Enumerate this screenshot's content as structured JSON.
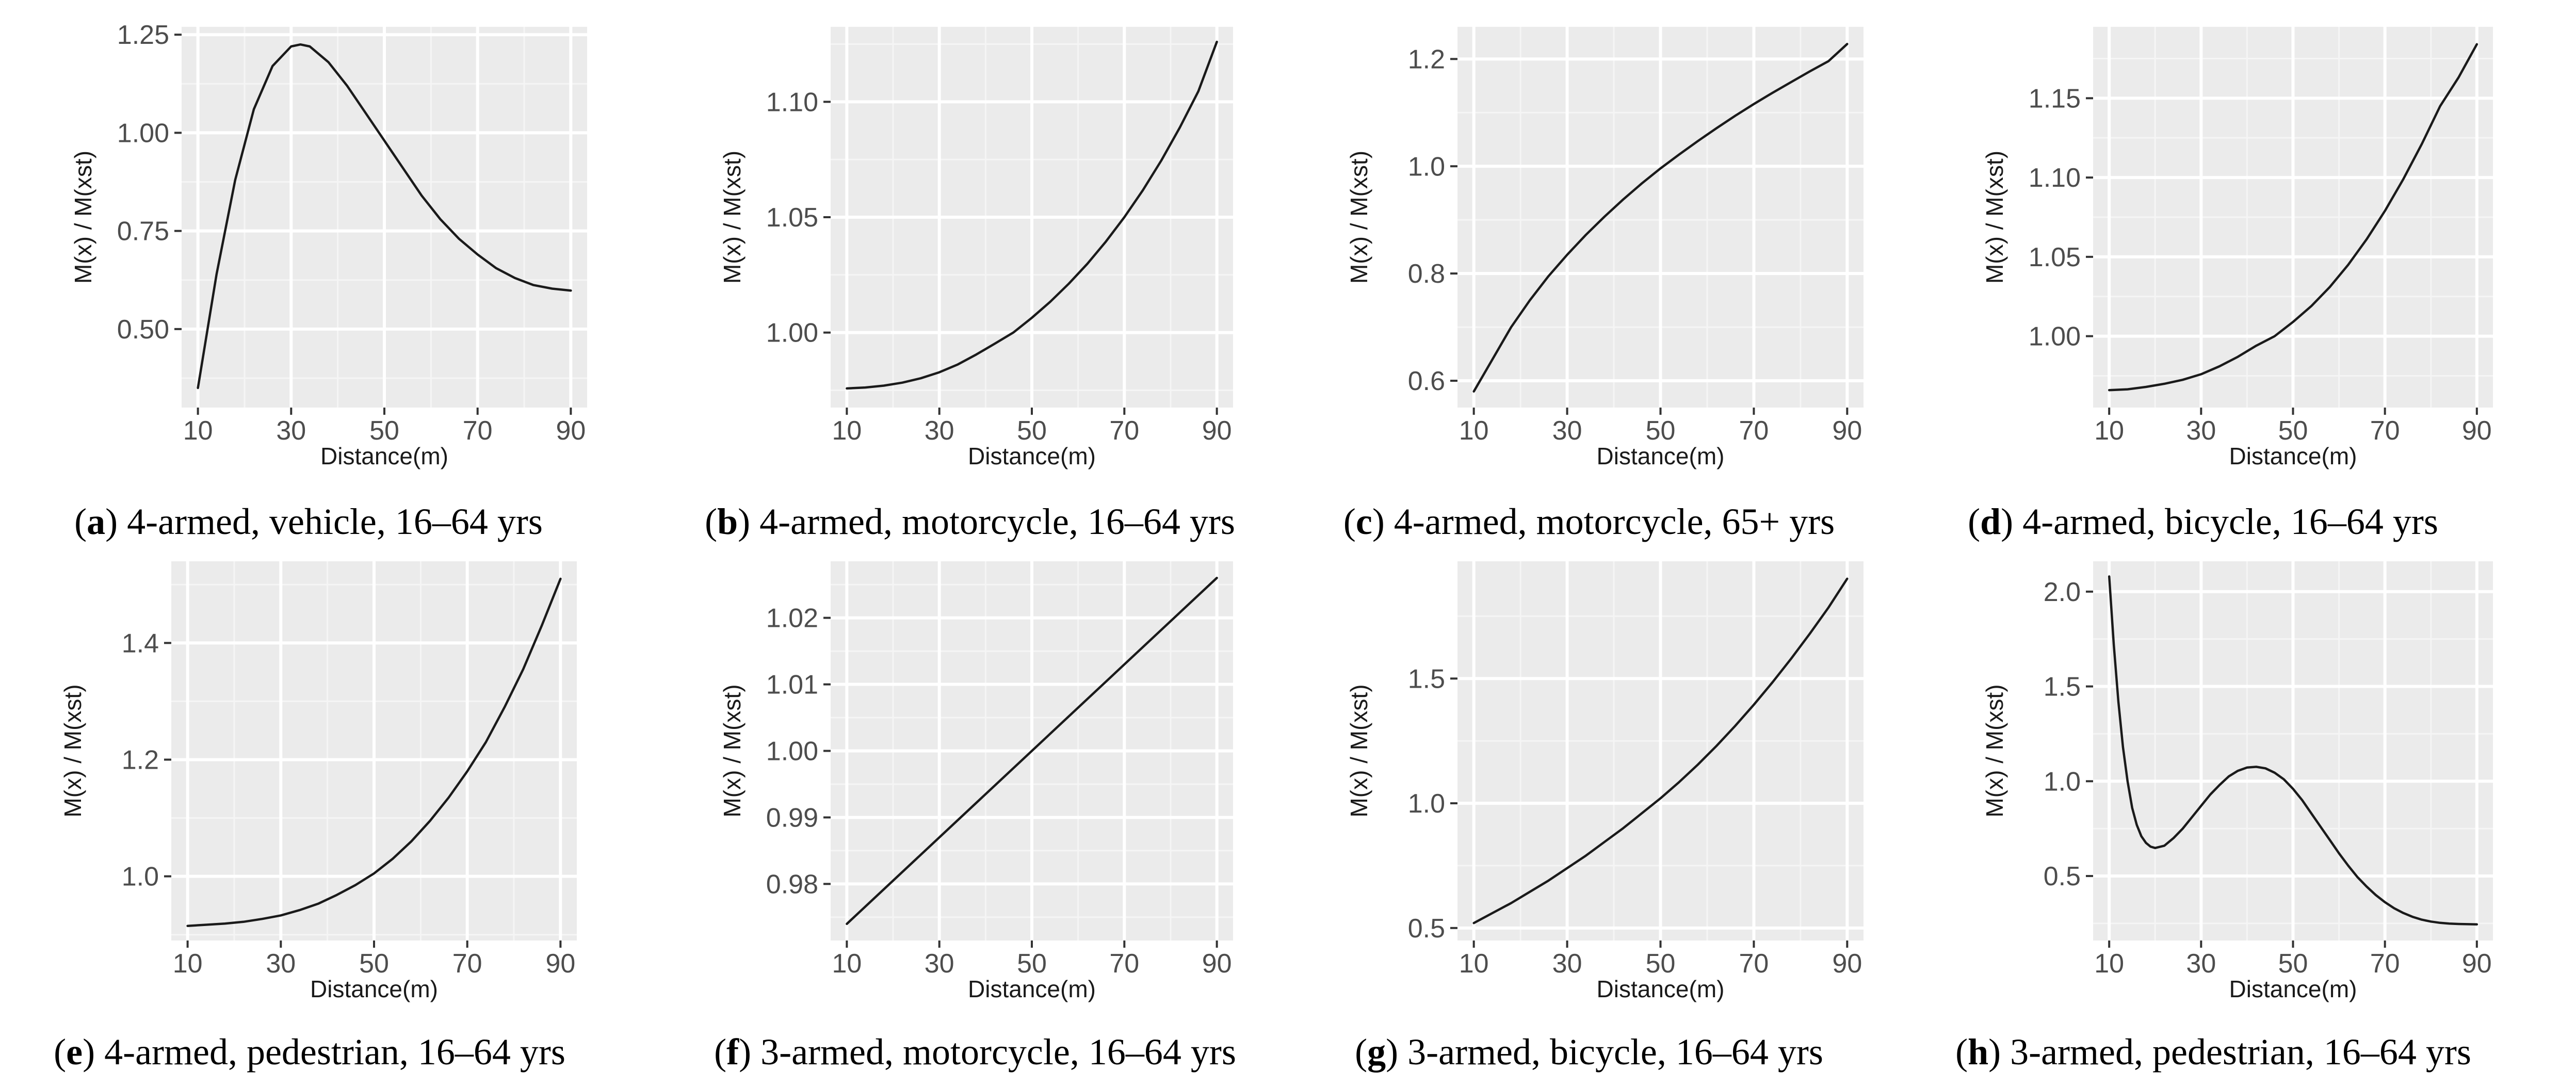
{
  "figure": {
    "panel_order": [
      "a",
      "b",
      "c",
      "d",
      "e",
      "f",
      "g",
      "h"
    ]
  },
  "chart_data": [
    {
      "id": "a",
      "type": "line",
      "caption_letter": "a",
      "caption_text": "4-armed, vehicle, 16–64 yrs",
      "xlabel": "Distance(m)",
      "ylabel": "M(x) / M(xst)",
      "xlim": [
        6.5,
        93.5
      ],
      "ylim": [
        0.3,
        1.27
      ],
      "xticks": [
        10,
        30,
        50,
        70,
        90
      ],
      "xtick_labels": [
        "10",
        "30",
        "50",
        "70",
        "90"
      ],
      "yticks": [
        0.5,
        0.75,
        1.0,
        1.25
      ],
      "ytick_labels": [
        "0.50",
        "0.75",
        "1.00",
        "1.25"
      ],
      "x": [
        10,
        14,
        18,
        22,
        26,
        30,
        32,
        34,
        38,
        42,
        46,
        50,
        54,
        58,
        62,
        66,
        70,
        74,
        78,
        82,
        86,
        90
      ],
      "y": [
        0.35,
        0.64,
        0.88,
        1.06,
        1.17,
        1.22,
        1.225,
        1.22,
        1.18,
        1.12,
        1.05,
        0.98,
        0.91,
        0.84,
        0.78,
        0.73,
        0.69,
        0.655,
        0.63,
        0.612,
        0.603,
        0.598
      ]
    },
    {
      "id": "b",
      "type": "line",
      "caption_letter": "b",
      "caption_text": "4-armed, motorcycle, 16–64 yrs",
      "xlabel": "Distance(m)",
      "ylabel": "M(x) / M(xst)",
      "xlim": [
        6.5,
        93.5
      ],
      "ylim": [
        0.9675,
        1.1325
      ],
      "xticks": [
        10,
        30,
        50,
        70,
        90
      ],
      "xtick_labels": [
        "10",
        "30",
        "50",
        "70",
        "90"
      ],
      "yticks": [
        1.0,
        1.05,
        1.1
      ],
      "ytick_labels": [
        "1.00",
        "1.05",
        "1.10"
      ],
      "x": [
        10,
        14,
        18,
        22,
        26,
        30,
        34,
        38,
        42,
        46,
        50,
        54,
        58,
        62,
        66,
        70,
        74,
        78,
        82,
        86,
        90
      ],
      "y": [
        0.9758,
        0.9762,
        0.977,
        0.9783,
        0.9802,
        0.9828,
        0.9862,
        0.9905,
        0.9952,
        1.0,
        1.0064,
        1.0134,
        1.0212,
        1.0298,
        1.0394,
        1.05,
        1.0617,
        1.0746,
        1.0889,
        1.1046,
        1.126
      ]
    },
    {
      "id": "c",
      "type": "line",
      "caption_letter": "c",
      "caption_text": "4-armed, motorcycle, 65+ yrs",
      "xlabel": "Distance(m)",
      "ylabel": "M(x) / M(xst)",
      "xlim": [
        6.5,
        93.5
      ],
      "ylim": [
        0.55,
        1.26
      ],
      "xticks": [
        10,
        30,
        50,
        70,
        90
      ],
      "xtick_labels": [
        "10",
        "30",
        "50",
        "70",
        "90"
      ],
      "yticks": [
        0.6,
        0.8,
        1.0,
        1.2
      ],
      "ytick_labels": [
        "0.6",
        "0.8",
        "1.0",
        "1.2"
      ],
      "x": [
        10,
        14,
        18,
        22,
        26,
        30,
        34,
        38,
        42,
        46,
        50,
        54,
        58,
        62,
        66,
        70,
        74,
        78,
        82,
        86,
        90
      ],
      "y": [
        0.58,
        0.64,
        0.7,
        0.75,
        0.795,
        0.835,
        0.872,
        0.906,
        0.938,
        0.968,
        0.996,
        1.022,
        1.047,
        1.071,
        1.094,
        1.116,
        1.137,
        1.157,
        1.177,
        1.196,
        1.228
      ]
    },
    {
      "id": "d",
      "type": "line",
      "caption_letter": "d",
      "caption_text": "4-armed, bicycle, 16–64 yrs",
      "xlabel": "Distance(m)",
      "ylabel": "M(x) / M(xst)",
      "xlim": [
        6.5,
        93.5
      ],
      "ylim": [
        0.955,
        1.195
      ],
      "xticks": [
        10,
        30,
        50,
        70,
        90
      ],
      "xtick_labels": [
        "10",
        "30",
        "50",
        "70",
        "90"
      ],
      "yticks": [
        1.0,
        1.05,
        1.1,
        1.15
      ],
      "ytick_labels": [
        "1.00",
        "1.05",
        "1.10",
        "1.15"
      ],
      "x": [
        10,
        14,
        18,
        22,
        26,
        30,
        34,
        38,
        42,
        46,
        50,
        54,
        58,
        62,
        66,
        70,
        74,
        78,
        82,
        86,
        90
      ],
      "y": [
        0.966,
        0.9665,
        0.968,
        0.97,
        0.9725,
        0.976,
        0.981,
        0.987,
        0.994,
        1.0,
        1.009,
        1.019,
        1.031,
        1.045,
        1.061,
        1.079,
        1.099,
        1.121,
        1.145,
        1.163,
        1.184
      ]
    },
    {
      "id": "e",
      "type": "line",
      "caption_letter": "e",
      "caption_text": "4-armed, pedestrian, 16–64 yrs",
      "xlabel": "Distance(m)",
      "ylabel": "M(x) / M(xst)",
      "xlim": [
        6.5,
        93.5
      ],
      "ylim": [
        0.89,
        1.54
      ],
      "xticks": [
        10,
        30,
        50,
        70,
        90
      ],
      "xtick_labels": [
        "10",
        "30",
        "50",
        "70",
        "90"
      ],
      "yticks": [
        1.0,
        1.2,
        1.4
      ],
      "ytick_labels": [
        "1.0",
        "1.2",
        "1.4"
      ],
      "x": [
        10,
        14,
        18,
        22,
        26,
        30,
        34,
        38,
        42,
        46,
        50,
        54,
        58,
        62,
        66,
        70,
        74,
        78,
        82,
        86,
        90
      ],
      "y": [
        0.915,
        0.917,
        0.919,
        0.922,
        0.927,
        0.933,
        0.942,
        0.953,
        0.968,
        0.985,
        1.005,
        1.03,
        1.06,
        1.095,
        1.135,
        1.18,
        1.23,
        1.29,
        1.355,
        1.43,
        1.51
      ]
    },
    {
      "id": "f",
      "type": "line",
      "caption_letter": "f",
      "caption_text": "3-armed, motorcycle, 16–64 yrs",
      "xlabel": "Distance(m)",
      "ylabel": "M(x) / M(xst)",
      "xlim": [
        6.5,
        93.5
      ],
      "ylim": [
        0.9715,
        1.0285
      ],
      "xticks": [
        10,
        30,
        50,
        70,
        90
      ],
      "xtick_labels": [
        "10",
        "30",
        "50",
        "70",
        "90"
      ],
      "yticks": [
        0.98,
        0.99,
        1.0,
        1.01,
        1.02
      ],
      "ytick_labels": [
        "0.98",
        "0.99",
        "1.00",
        "1.01",
        "1.02"
      ],
      "x": [
        10,
        90
      ],
      "y": [
        0.974,
        1.026
      ]
    },
    {
      "id": "g",
      "type": "line",
      "caption_letter": "g",
      "caption_text": "3-armed, bicycle, 16–64 yrs",
      "xlabel": "Distance(m)",
      "ylabel": "M(x) / M(xst)",
      "xlim": [
        6.5,
        93.5
      ],
      "ylim": [
        0.45,
        1.97
      ],
      "xticks": [
        10,
        30,
        50,
        70,
        90
      ],
      "xtick_labels": [
        "10",
        "30",
        "50",
        "70",
        "90"
      ],
      "yticks": [
        0.5,
        1.0,
        1.5
      ],
      "ytick_labels": [
        "0.5",
        "1.0",
        "1.5"
      ],
      "x": [
        10,
        14,
        18,
        22,
        26,
        30,
        34,
        38,
        42,
        46,
        50,
        54,
        58,
        62,
        66,
        70,
        74,
        78,
        82,
        86,
        90
      ],
      "y": [
        0.52,
        0.56,
        0.6,
        0.645,
        0.69,
        0.74,
        0.79,
        0.845,
        0.9,
        0.96,
        1.02,
        1.085,
        1.155,
        1.23,
        1.31,
        1.395,
        1.485,
        1.58,
        1.68,
        1.785,
        1.9
      ]
    },
    {
      "id": "h",
      "type": "line",
      "caption_letter": "h",
      "caption_text": "3-armed, pedestrian, 16–64 yrs",
      "xlabel": "Distance(m)",
      "ylabel": "M(x) / M(xst)",
      "xlim": [
        6.5,
        93.5
      ],
      "ylim": [
        0.16,
        2.16
      ],
      "xticks": [
        10,
        30,
        50,
        70,
        90
      ],
      "xtick_labels": [
        "10",
        "30",
        "50",
        "70",
        "90"
      ],
      "yticks": [
        0.5,
        1.0,
        1.5,
        2.0
      ],
      "ytick_labels": [
        "0.5",
        "1.0",
        "1.5",
        "2.0"
      ],
      "x": [
        10,
        11,
        12,
        13,
        14,
        15,
        16,
        17,
        18,
        19,
        20,
        22,
        24,
        26,
        28,
        30,
        32,
        34,
        36,
        38,
        40,
        42,
        44,
        46,
        48,
        50,
        52,
        54,
        56,
        58,
        60,
        62,
        64,
        66,
        68,
        70,
        72,
        74,
        76,
        78,
        80,
        82,
        84,
        86,
        88,
        90
      ],
      "y": [
        2.08,
        1.72,
        1.42,
        1.18,
        1.0,
        0.86,
        0.77,
        0.71,
        0.675,
        0.655,
        0.648,
        0.66,
        0.7,
        0.75,
        0.81,
        0.87,
        0.93,
        0.98,
        1.025,
        1.055,
        1.072,
        1.076,
        1.068,
        1.045,
        1.01,
        0.96,
        0.9,
        0.83,
        0.76,
        0.69,
        0.62,
        0.555,
        0.495,
        0.445,
        0.4,
        0.362,
        0.33,
        0.305,
        0.285,
        0.27,
        0.26,
        0.253,
        0.249,
        0.247,
        0.246,
        0.245
      ]
    }
  ]
}
